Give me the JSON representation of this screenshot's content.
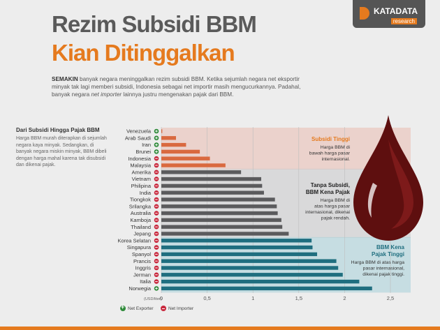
{
  "header": {
    "title_line1": "Rezim Subsidi BBM",
    "title_line2": "Kian Ditinggalkan",
    "logo_text": "KATADATA",
    "logo_sub": "research"
  },
  "intro": {
    "lead": "SEMAKIN",
    "part1": " banyak negara meninggalkan rezim subsidi BBM. Ketika sejumlah negara net eksportir minyak tak lagi memberi subsidi, Indonesia sebagai net importir masih mengucurkannya. Padahal, banyak negara ",
    "italic": "net importer",
    "part2": " lainnya justru mengenakan pajak dari BBM."
  },
  "sidebar": {
    "title": "Dari Subsidi Hingga Pajak BBM",
    "text": "Harga BBM murah diterapkan di sejumlah negara kaya minyak. Sedangkan, di banyak negara miskin minyak, BBM dibeli dengan harga mahal karena tak disubsidi dan dikenai pajak."
  },
  "colors": {
    "orange_bar": "#d9693f",
    "gray_bar": "#5b5b5d",
    "teal_bar": "#1f6e7f",
    "exporter": "#2f8a3a",
    "importer": "#c8283d",
    "accent": "#e57a1e"
  },
  "chart_data": {
    "type": "bar",
    "orientation": "horizontal",
    "xlabel": "(USD/liter)",
    "xlim": [
      0,
      2.5
    ],
    "xticks": [
      "0",
      "0,5",
      "1",
      "1,5",
      "2",
      "2,5"
    ],
    "grid": true,
    "categories": [
      "Venezuela",
      "Arab Saudi",
      "Iran",
      "Brunei",
      "Indonesia",
      "Malaysia",
      "Amerika",
      "Vietnam",
      "Philipina",
      "India",
      "Tiongkok",
      "Srilangka",
      "Australia",
      "Kamboja",
      "Thailand",
      "Jepang",
      "Korea Selatan",
      "Singapura",
      "Spanyol",
      "Prancis",
      "Inggris",
      "Jerman",
      "Italia",
      "Norwegia"
    ],
    "values": [
      0.01,
      0.16,
      0.27,
      0.42,
      0.53,
      0.7,
      0.87,
      1.09,
      1.1,
      1.12,
      1.24,
      1.26,
      1.27,
      1.31,
      1.32,
      1.39,
      1.64,
      1.65,
      1.7,
      1.91,
      1.93,
      1.98,
      2.16,
      2.3
    ],
    "status": [
      "exporter",
      "exporter",
      "exporter",
      "exporter",
      "importer",
      "importer",
      "importer",
      "importer",
      "importer",
      "importer",
      "importer",
      "importer",
      "importer",
      "importer",
      "importer",
      "importer",
      "importer",
      "importer",
      "importer",
      "importer",
      "importer",
      "importer",
      "importer",
      "exporter"
    ],
    "groups": [
      {
        "title": "Subsidi Tinggi",
        "desc": "Harga BBM di bawah harga pasar internasional.",
        "range": [
          0,
          5
        ]
      },
      {
        "title": "Tanpa Subsidi, BBM Kena Pajak",
        "desc": "Harga BBM di atas harga pasar internasional, dikenai pajak rendah.",
        "range": [
          6,
          15
        ]
      },
      {
        "title": "BBM Kena Pajak Tinggi",
        "desc": "Harga BBM di atas harga pasar internasional, dikenai pajak tinggi.",
        "range": [
          16,
          23
        ]
      }
    ],
    "legend": [
      "Net Exporter",
      "Net Importer"
    ]
  }
}
